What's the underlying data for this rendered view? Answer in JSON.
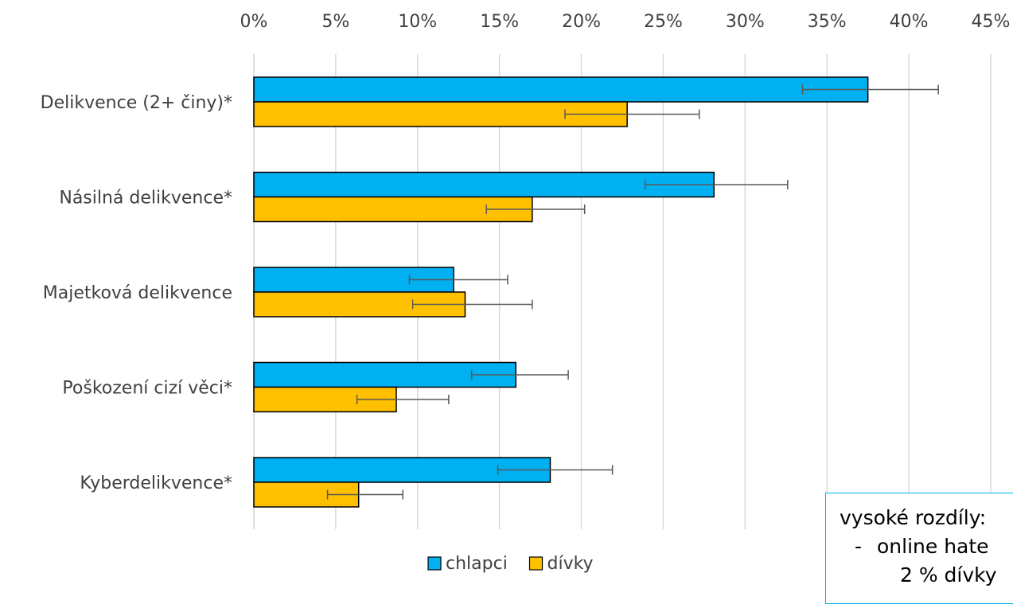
{
  "chart_data": {
    "type": "bar",
    "orientation": "horizontal",
    "categories": [
      "Delikvence (2+ činy)*",
      "Násilná delikvence*",
      "Majetková delikvence",
      "Poškození cizí věci*",
      "Kyberdelikvence*"
    ],
    "series": [
      {
        "name": "chlapci",
        "color": "#00b0f0",
        "values": [
          37.5,
          28.1,
          12.2,
          16.0,
          18.1
        ],
        "error_low": [
          33.5,
          23.9,
          9.5,
          13.3,
          14.9
        ],
        "error_high": [
          41.8,
          32.6,
          15.5,
          19.2,
          21.9
        ]
      },
      {
        "name": "dívky",
        "color": "#ffc000",
        "values": [
          22.8,
          17.0,
          12.9,
          8.7,
          6.4
        ],
        "error_low": [
          19.0,
          14.2,
          9.7,
          6.3,
          4.5
        ],
        "error_high": [
          27.2,
          20.2,
          17.0,
          11.9,
          9.1
        ]
      }
    ],
    "xlim": [
      0,
      45
    ],
    "x_ticks": [
      "0%",
      "5%",
      "10%",
      "15%",
      "20%",
      "25%",
      "30%",
      "35%",
      "40%",
      "45%"
    ],
    "x_axis_position": "top",
    "grid": true,
    "legend_position": "bottom"
  },
  "note": {
    "title": "vysoké rozdíly:",
    "bullet": "-",
    "line1": "online hate",
    "line2": "2 % dívky"
  }
}
